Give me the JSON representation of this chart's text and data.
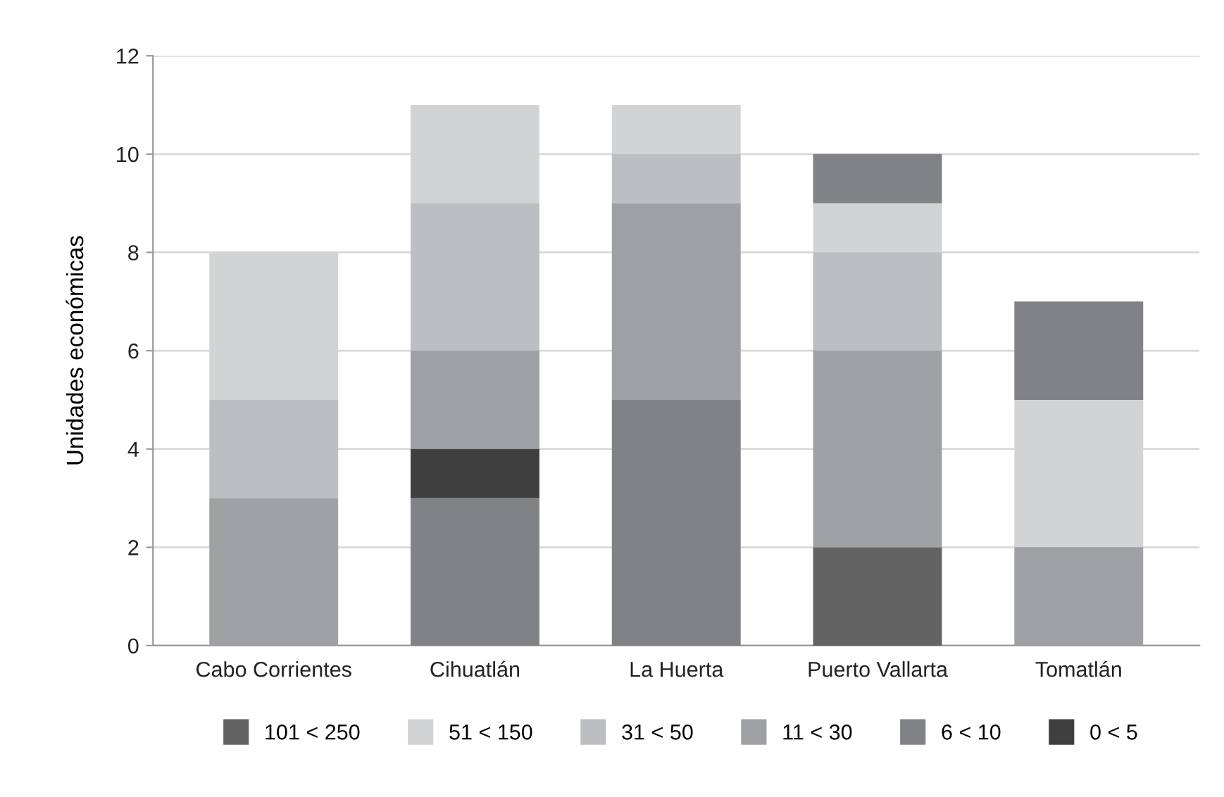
{
  "chart_data": {
    "type": "bar",
    "ylabel": "Unidades económicas",
    "categories": [
      "Cabo Corrientes",
      "Cihuatlán",
      "La Huerta",
      "Puerto Vallarta",
      "Tomatlán"
    ],
    "series": [
      {
        "name": "101 < 250",
        "color": "#636363",
        "values": [
          null,
          null,
          null,
          2,
          null
        ],
        "base": [
          null,
          null,
          null,
          0,
          null
        ]
      },
      {
        "name": "51 < 150",
        "color": "#d2d3d5",
        "values": [
          3,
          2,
          1,
          1,
          3
        ],
        "base": [
          5,
          9,
          10,
          8,
          2
        ]
      },
      {
        "name": "31 < 50",
        "color": "#bdbec1",
        "values": [
          2,
          3,
          1,
          2,
          null
        ],
        "base": [
          3,
          6,
          9,
          6,
          null
        ]
      },
      {
        "name": "11 < 30",
        "color": "#a0a1a4",
        "values": [
          3,
          2,
          4,
          4,
          2
        ],
        "base": [
          0,
          4,
          5,
          2,
          0
        ]
      },
      {
        "name": "6 < 10",
        "color": "#818285",
        "values": [
          null,
          3,
          5,
          1,
          2
        ],
        "base": [
          null,
          0,
          0,
          9,
          5
        ]
      },
      {
        "name": "0 < 5",
        "color": "#3f3f3f",
        "values": [
          null,
          1,
          null,
          null,
          null
        ],
        "base": [
          null,
          3,
          null,
          null,
          null
        ]
      }
    ],
    "ylim": [
      0,
      12
    ],
    "yticks": [
      0,
      2,
      4,
      6,
      8,
      10,
      12
    ],
    "grid": "y",
    "legend": "bottom"
  }
}
